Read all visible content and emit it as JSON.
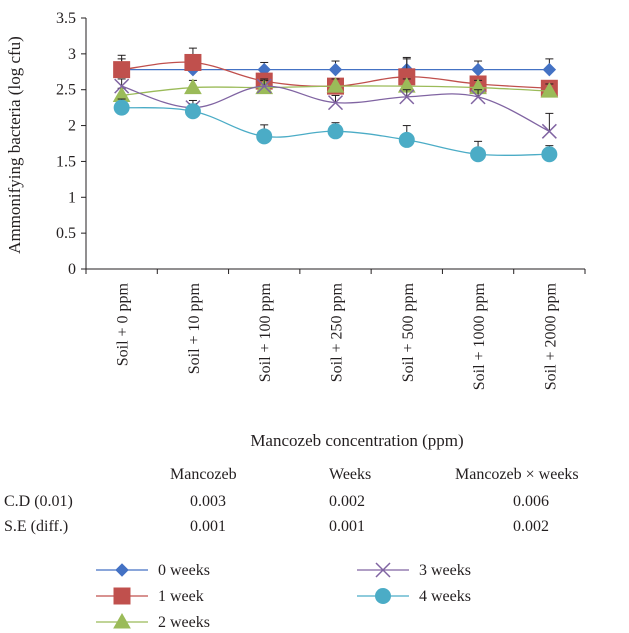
{
  "chart_data": {
    "type": "line",
    "title": "",
    "xlabel": "Mancozeb concentration (ppm)",
    "ylabel": "Ammonifying bacteria (log cfu)",
    "ylim": [
      0,
      3.5
    ],
    "yticks": [
      "0",
      "0.5",
      "1",
      "1.5",
      "2",
      "2.5",
      "3",
      "3.5"
    ],
    "categories": [
      "Soil + 0 ppm",
      "Soil + 10 ppm",
      "Soil + 100 ppm",
      "Soil + 250 ppm",
      "Soil + 500 ppm",
      "Soil + 1000 ppm",
      "Soil + 2000 ppm"
    ],
    "series": [
      {
        "name": "0 weeks",
        "color": "#4472c4",
        "marker": "diamond",
        "values": [
          2.78,
          2.78,
          2.78,
          2.78,
          2.78,
          2.78,
          2.78
        ],
        "error": [
          0.15,
          0.15,
          0.1,
          0.12,
          0.15,
          0.12,
          0.15
        ]
      },
      {
        "name": "1 week",
        "color": "#c0504d",
        "marker": "square",
        "values": [
          2.78,
          2.88,
          2.62,
          2.55,
          2.68,
          2.58,
          2.52
        ],
        "error": [
          0.2,
          0.2,
          0.1,
          0.1,
          0.27,
          0.1,
          0.1
        ]
      },
      {
        "name": "2 weeks",
        "color": "#9bbb59",
        "marker": "triangle",
        "values": [
          2.42,
          2.53,
          2.53,
          2.55,
          2.55,
          2.53,
          2.48
        ],
        "error": [
          0.1,
          0.1,
          0.1,
          0.1,
          0.1,
          0.1,
          0.1
        ]
      },
      {
        "name": "3 weeks",
        "color": "#8064a2",
        "marker": "x",
        "values": [
          2.55,
          2.25,
          2.55,
          2.32,
          2.4,
          2.4,
          1.92
        ],
        "error": [
          0.1,
          0.1,
          0.1,
          0.1,
          0.1,
          0.1,
          0.25
        ]
      },
      {
        "name": "4 weeks",
        "color": "#4bacc6",
        "marker": "circle",
        "values": [
          2.25,
          2.2,
          1.85,
          1.92,
          1.8,
          1.6,
          1.6
        ],
        "error": [
          0.12,
          0.1,
          0.16,
          0.12,
          0.2,
          0.18,
          0.12
        ]
      }
    ],
    "legend_position": "bottom"
  },
  "stats_table": {
    "columns": [
      "Mancozeb",
      "Weeks",
      "Mancozeb × weeks"
    ],
    "rows": [
      {
        "label": "C.D (0.01)",
        "values": [
          "0.003",
          "0.002",
          "0.006"
        ]
      },
      {
        "label": "S.E (diff.)",
        "values": [
          "0.001",
          "0.001",
          "0.002"
        ]
      }
    ]
  }
}
